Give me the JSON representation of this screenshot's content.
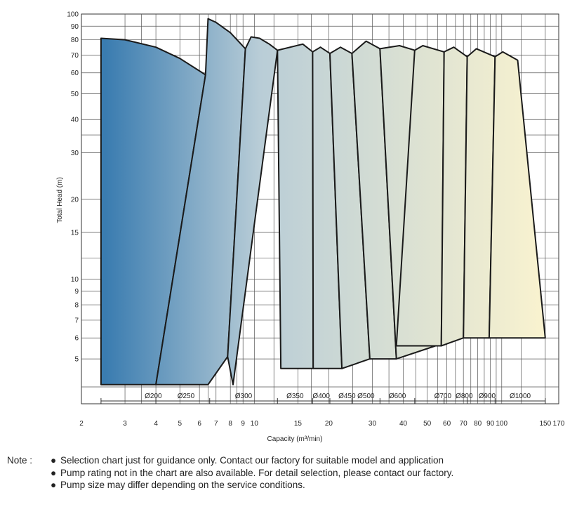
{
  "chart_data": {
    "type": "area",
    "xlabel": "Capacity (m³/min)",
    "ylabel": "Total Head (m)",
    "x_scale": "log",
    "y_scale": "log",
    "xlim": [
      2,
      170
    ],
    "ylim": [
      3.92,
      100
    ],
    "grid": true,
    "x_ticks": [
      2,
      3,
      4,
      5,
      6,
      7,
      8,
      9,
      10,
      15,
      20,
      30,
      40,
      50,
      60,
      70,
      80,
      90,
      100,
      150,
      170
    ],
    "x_tick_labels": [
      "2",
      "3",
      "4",
      "5",
      "6",
      "7",
      "8",
      "9",
      "10",
      "15",
      "20",
      "30",
      "40",
      "50",
      "60",
      "70",
      "80",
      "90",
      "100",
      "150",
      "170"
    ],
    "y_ticks": [
      5,
      6,
      7,
      8,
      9,
      10,
      15,
      20,
      30,
      40,
      50,
      60,
      70,
      80,
      90,
      100
    ],
    "y_tick_labels": [
      "5",
      "6",
      "7",
      "8",
      "9",
      "10",
      "15",
      "20",
      "30",
      "40",
      "50",
      "60",
      "70",
      "80",
      "90",
      "100"
    ],
    "x_extra_gridlines": [
      3.5,
      6.5,
      8.5,
      12,
      17,
      25,
      35,
      45,
      55,
      65,
      75,
      85,
      95,
      120
    ],
    "y_extra_gridlines": [
      35,
      12
    ],
    "color_start": "#3a7cb0",
    "color_end": "#faf3cf",
    "outline_color": "#1a1a1a",
    "series": [
      {
        "name": "Ø200",
        "range": [
          2.4,
          6.35
        ],
        "outline": [
          [
            2.4,
            4
          ],
          [
            2.4,
            81
          ],
          [
            3,
            80
          ],
          [
            4,
            75
          ],
          [
            5,
            68
          ],
          [
            6.35,
            59
          ],
          [
            4,
            4
          ]
        ]
      },
      {
        "name": "Ø250",
        "range": [
          4,
          7
        ],
        "outline": [
          [
            4,
            4
          ],
          [
            6.35,
            59
          ],
          [
            6.5,
            96
          ],
          [
            7,
            93
          ],
          [
            8,
            85
          ],
          [
            9.2,
            74
          ],
          [
            7.8,
            5.1
          ],
          [
            6.5,
            4
          ]
        ]
      },
      {
        "name": "Ø300",
        "range": [
          6.6,
          12.4
        ],
        "outline": [
          [
            8.2,
            4
          ],
          [
            7.8,
            5.1
          ],
          [
            9.2,
            74
          ],
          [
            9.7,
            82
          ],
          [
            10.5,
            81
          ],
          [
            11.5,
            77
          ],
          [
            12.4,
            73
          ],
          [
            8.2,
            4
          ]
        ]
      },
      {
        "name": "Ø350",
        "range": [
          12.4,
          17.2
        ],
        "outline": [
          [
            12.8,
            4.6
          ],
          [
            12.4,
            73
          ],
          [
            15.7,
            77
          ],
          [
            17.2,
            72
          ],
          [
            17.3,
            4.6
          ]
        ]
      },
      {
        "name": "Ø400",
        "range": [
          17.2,
          20.2
        ],
        "outline": [
          [
            17.3,
            4.6
          ],
          [
            17.2,
            72
          ],
          [
            18.5,
            75
          ],
          [
            20.2,
            71
          ],
          [
            22.6,
            4.6
          ]
        ]
      },
      {
        "name": "Ø450",
        "range": [
          20.2,
          27.8
        ],
        "outline": [
          [
            22.6,
            4.6
          ],
          [
            20.2,
            71
          ],
          [
            22.3,
            75
          ],
          [
            24.8,
            71
          ],
          [
            29.3,
            5
          ]
        ]
      },
      {
        "name": "Ø500",
        "range": [
          24.8,
          32.2
        ],
        "outline": [
          [
            29.3,
            5
          ],
          [
            24.8,
            71
          ],
          [
            28.3,
            79
          ],
          [
            32.2,
            74
          ],
          [
            37.5,
            5
          ]
        ]
      },
      {
        "name": "Ø600",
        "range": [
          32.2,
          44.5
        ],
        "outline": [
          [
            37.5,
            5
          ],
          [
            32.2,
            74
          ],
          [
            38.6,
            76
          ],
          [
            44.5,
            73
          ],
          [
            54,
            5.6
          ]
        ]
      },
      {
        "name": "Ø700",
        "range": [
          44.5,
          75
        ],
        "outline": [
          [
            37.5,
            5.6
          ],
          [
            44.5,
            73
          ],
          [
            48,
            76
          ],
          [
            58.5,
            72
          ],
          [
            57,
            5.6
          ]
        ]
      },
      {
        "name": "Ø800",
        "range": [
          58.5,
          85
        ],
        "outline": [
          [
            57,
            5.6
          ],
          [
            58.5,
            72
          ],
          [
            64,
            75
          ],
          [
            72.5,
            69
          ],
          [
            70,
            6
          ]
        ]
      },
      {
        "name": "Ø900",
        "range": [
          72.5,
          105
        ],
        "outline": [
          [
            70,
            6
          ],
          [
            72.5,
            69
          ],
          [
            79,
            74
          ],
          [
            94,
            69
          ],
          [
            89,
            6
          ]
        ]
      },
      {
        "name": "Ø1000",
        "range": [
          94,
          150
        ],
        "outline": [
          [
            89,
            6
          ],
          [
            94,
            69
          ],
          [
            101,
            72
          ],
          [
            116,
            67
          ],
          [
            150,
            6
          ]
        ]
      }
    ]
  },
  "notes": {
    "prefix": "Note :",
    "bullet": "●",
    "items": [
      "Selection chart just for guidance only. Contact our factory for suitable model and application",
      "Pump rating not in the chart are also available. For detail selection, please contact our factory.",
      "Pump size may differ depending on the service conditions."
    ]
  }
}
